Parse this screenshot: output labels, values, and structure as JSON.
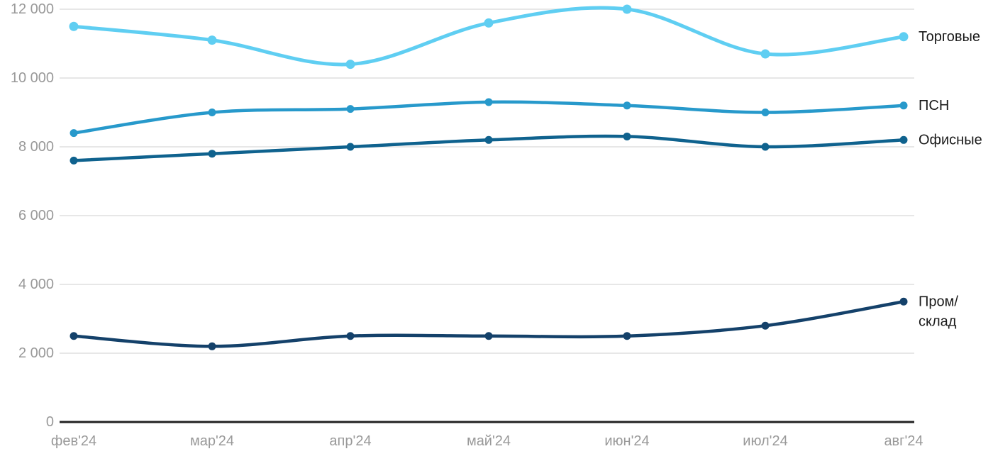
{
  "page": {
    "background": "#ffffff"
  },
  "chart_data": {
    "type": "line",
    "title": "",
    "xlabel": "",
    "ylabel": "",
    "categories": [
      "фев'24",
      "мар'24",
      "апр'24",
      "май'24",
      "июн'24",
      "июл'24",
      "авг'24"
    ],
    "series": [
      {
        "name": "Торговые",
        "legend_lines": [
          "Торговые"
        ],
        "color": "#5FCEF2",
        "values": [
          11500,
          11100,
          10400,
          11600,
          12000,
          10700,
          11200
        ]
      },
      {
        "name": "ПСН",
        "legend_lines": [
          "ПСН"
        ],
        "color": "#2799CB",
        "values": [
          8400,
          9000,
          9100,
          9300,
          9200,
          9000,
          9200
        ]
      },
      {
        "name": "Офисные",
        "legend_lines": [
          "Офисные"
        ],
        "color": "#0F628E",
        "values": [
          7600,
          7800,
          8000,
          8200,
          8300,
          8000,
          8200
        ]
      },
      {
        "name": "Пром/склад",
        "legend_lines": [
          "Пром/",
          "склад"
        ],
        "color": "#14416A",
        "values": [
          2500,
          2200,
          2500,
          2500,
          2500,
          2800,
          3500
        ]
      }
    ],
    "yticks": [
      {
        "value": 0,
        "label": "0"
      },
      {
        "value": 2000,
        "label": "2 000"
      },
      {
        "value": 4000,
        "label": "4 000"
      },
      {
        "value": 6000,
        "label": "6 000"
      },
      {
        "value": 8000,
        "label": "8 000"
      },
      {
        "value": 10000,
        "label": "10 000"
      },
      {
        "value": 12000,
        "label": "12 000"
      }
    ],
    "ylim": [
      0,
      12000
    ],
    "grid": true,
    "legend_position": "right-of-last-point",
    "colors": {
      "grid": "#e7e7e7",
      "axis_line": "#222222",
      "tick_text": "#999999",
      "legend_text": "#1a1a1a"
    }
  }
}
